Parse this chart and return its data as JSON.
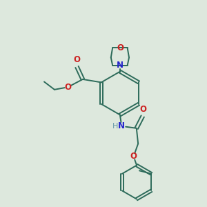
{
  "bg_color": "#dde8dd",
  "bond_color": "#2d6b5a",
  "n_color": "#2222cc",
  "o_color": "#cc2222",
  "h_color": "#6699aa",
  "line_width": 1.4,
  "fig_size": [
    3.0,
    3.0
  ],
  "dpi": 100,
  "xlim": [
    0,
    10
  ],
  "ylim": [
    0,
    10
  ]
}
